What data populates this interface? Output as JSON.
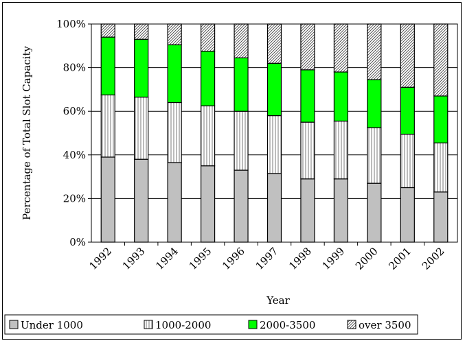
{
  "chart_data": {
    "type": "bar",
    "stacked": true,
    "percent": true,
    "categories": [
      "1992",
      "1993",
      "1994",
      "1995",
      "1996",
      "1997",
      "1998",
      "1999",
      "2000",
      "2001",
      "2002"
    ],
    "series": [
      {
        "name": "Under 1000",
        "values": [
          39,
          38,
          36.5,
          35,
          33,
          31.5,
          29,
          29,
          27,
          25,
          23
        ],
        "color": "#c0c0c0",
        "pattern": "solid"
      },
      {
        "name": "1000-2000",
        "values": [
          28.5,
          28.5,
          27.5,
          27.5,
          27,
          26.5,
          26,
          26.5,
          25.5,
          24.5,
          22.5
        ],
        "color": "#ffffff",
        "pattern": "vertical-lines"
      },
      {
        "name": "2000-3500",
        "values": [
          26.5,
          26.5,
          26.5,
          25,
          24.5,
          24,
          24,
          22.5,
          22,
          21.5,
          21.5
        ],
        "color": "#00ff00",
        "pattern": "solid"
      },
      {
        "name": "over 3500",
        "values": [
          6,
          7,
          9.5,
          12.5,
          15.5,
          18,
          21,
          22,
          25.5,
          29,
          33
        ],
        "color": "#ffffff",
        "pattern": "diagonal-lines"
      }
    ],
    "xlabel": "Year",
    "ylabel": "Percentage of Total Slot Capacity",
    "ylim": [
      0,
      100
    ],
    "yticks": [
      "0%",
      "20%",
      "40%",
      "60%",
      "80%",
      "100%"
    ],
    "grid": true,
    "legend": "bottom"
  }
}
